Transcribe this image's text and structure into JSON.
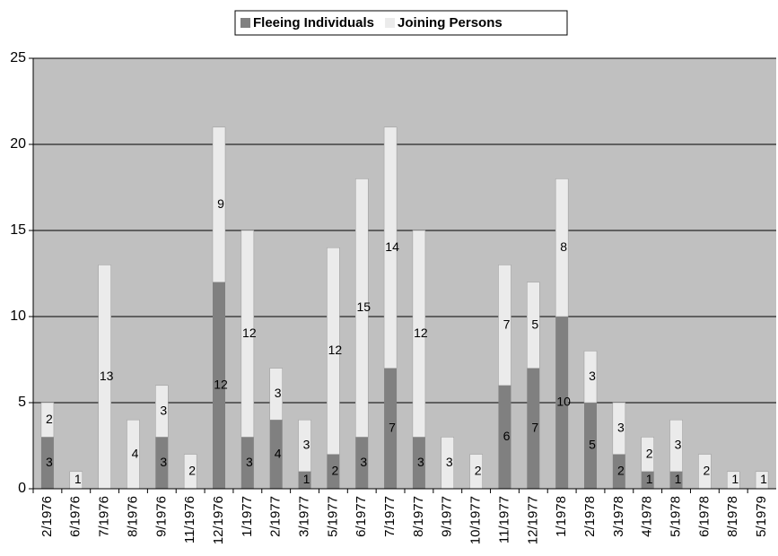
{
  "chart_data": {
    "type": "stacked_bar",
    "categories": [
      "2/1976",
      "6/1976",
      "7/1976",
      "8/1976",
      "9/1976",
      "11/1976",
      "12/1976",
      "1/1977",
      "2/1977",
      "3/1977",
      "5/1977",
      "6/1977",
      "7/1977",
      "8/1977",
      "9/1977",
      "10/1977",
      "11/1977",
      "12/1977",
      "1/1978",
      "2/1978",
      "3/1978",
      "4/1978",
      "5/1978",
      "6/1978",
      "8/1978",
      "5/1979"
    ],
    "series": [
      {
        "name": "Fleeing Individuals",
        "color": "#808080",
        "values": [
          3,
          0,
          0,
          0,
          3,
          0,
          12,
          3,
          4,
          1,
          2,
          3,
          7,
          3,
          0,
          0,
          6,
          7,
          10,
          5,
          2,
          1,
          1,
          0,
          0,
          0
        ]
      },
      {
        "name": "Joining Persons",
        "color": "#ebebeb",
        "values": [
          2,
          1,
          13,
          4,
          3,
          2,
          9,
          12,
          3,
          3,
          12,
          15,
          14,
          12,
          3,
          2,
          7,
          5,
          8,
          3,
          3,
          2,
          3,
          2,
          1,
          1
        ]
      }
    ],
    "ylim": [
      0,
      25
    ],
    "yticks": [
      0,
      5,
      10,
      15,
      20,
      25
    ],
    "grid": true,
    "legend": "top"
  }
}
